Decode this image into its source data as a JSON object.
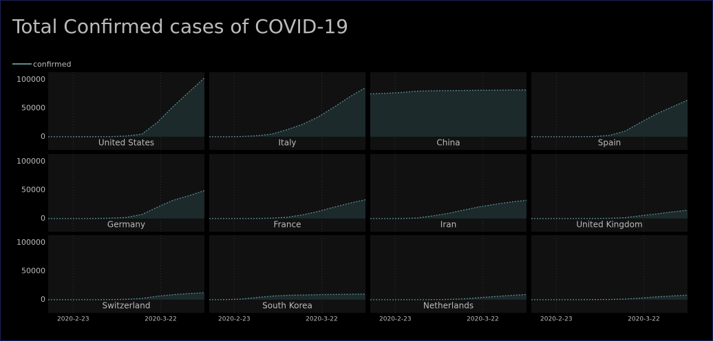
{
  "chart_data": {
    "type": "area",
    "title": "Total Confirmed cases of COVID-19",
    "legend_label": "confirmed",
    "line_color": "#5f8e94",
    "fill_color": "#1c2a2c",
    "x": [
      "2020-2-15",
      "2020-2-20",
      "2020-2-25",
      "2020-3-1",
      "2020-3-6",
      "2020-3-11",
      "2020-3-16",
      "2020-3-21",
      "2020-3-26",
      "2020-3-31",
      "2020-4-5"
    ],
    "xlim": [
      "2020-2-15",
      "2020-4-5"
    ],
    "xticks": [
      "2020-2-23",
      "2020-3-22"
    ],
    "ylim": [
      -23000,
      113000
    ],
    "yticks": [
      0,
      50000,
      100000
    ],
    "series": [
      {
        "name": "United States",
        "values": [
          15,
          15,
          57,
          70,
          260,
          1300,
          4600,
          25500,
          53000,
          78000,
          103000
        ]
      },
      {
        "name": "Italy",
        "values": [
          3,
          3,
          320,
          1700,
          4600,
          12500,
          22000,
          35000,
          52000,
          70000,
          86000
        ]
      },
      {
        "name": "China",
        "values": [
          75000,
          76000,
          77500,
          79800,
          80500,
          80800,
          81000,
          81300,
          81500,
          81800,
          82000
        ]
      },
      {
        "name": "Spain",
        "values": [
          2,
          2,
          2,
          80,
          400,
          2300,
          9900,
          25000,
          40000,
          52000,
          64000
        ]
      },
      {
        "name": "Germany",
        "values": [
          16,
          16,
          16,
          130,
          670,
          1900,
          7200,
          20000,
          32000,
          40000,
          49000
        ]
      },
      {
        "name": "France",
        "values": [
          12,
          12,
          13,
          130,
          650,
          2300,
          6600,
          12600,
          20000,
          27000,
          33000
        ]
      },
      {
        "name": "Iran",
        "values": [
          0,
          5,
          140,
          980,
          4700,
          9000,
          15000,
          20600,
          25000,
          29000,
          32000
        ]
      },
      {
        "name": "United Kingdom",
        "values": [
          9,
          9,
          13,
          36,
          160,
          460,
          1550,
          5000,
          8000,
          11500,
          14500
        ]
      },
      {
        "name": "Switzerland",
        "values": [
          0,
          0,
          1,
          27,
          210,
          650,
          2200,
          6100,
          8800,
          10700,
          12300
        ]
      },
      {
        "name": "South Korea",
        "values": [
          28,
          100,
          980,
          3700,
          6300,
          7700,
          8200,
          8800,
          9100,
          9500,
          9800
        ]
      },
      {
        "name": "Netherlands",
        "values": [
          0,
          0,
          0,
          10,
          130,
          500,
          1400,
          3600,
          5500,
          7400,
          9000
        ]
      },
      {
        "name": null,
        "values": [
          0,
          0,
          1,
          2,
          170,
          300,
          1100,
          2800,
          4900,
          6500,
          8000
        ]
      }
    ]
  }
}
